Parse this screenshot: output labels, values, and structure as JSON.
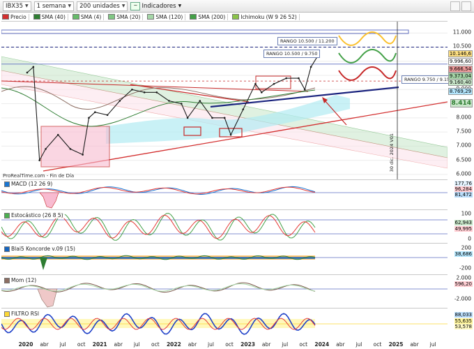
{
  "toolbar": {
    "symbol": "IBX35",
    "period": "1 semana",
    "units": "200 unidades",
    "indicators_label": "Indicadores"
  },
  "legend": [
    {
      "label": "Precio",
      "color": "#d32f2f"
    },
    {
      "label": "SMA (40)",
      "color": "#2e7d32"
    },
    {
      "label": "SMA (4)",
      "color": "#66bb6a"
    },
    {
      "label": "SMA (20)",
      "color": "#81c784"
    },
    {
      "label": "SMA (120)",
      "color": "#a5d6a7"
    },
    {
      "label": "SMA (200)",
      "color": "#43a047"
    },
    {
      "label": "Ichimoku (W 9 26 52)",
      "color": "#8bc34a"
    }
  ],
  "price_axis": [
    "11.000",
    "10.500",
    "10.000",
    "9.500",
    "9.000",
    "8.500",
    "8.000",
    "7.500",
    "7.000",
    "6.500",
    "6.000"
  ],
  "price_tags": [
    {
      "text": "10.146,6",
      "color": "#ffe082"
    },
    {
      "text": "9.996,60",
      "color": "#ffffff"
    },
    {
      "text": "9.666,54",
      "color": "#ef9a9a"
    },
    {
      "text": "9.373,04",
      "color": "#a5d6a7"
    },
    {
      "text": "9.160,40",
      "color": "#c8e6c9"
    },
    {
      "text": "8.769,29",
      "color": "#b3e5fc"
    },
    {
      "text": "8.414",
      "color": "#c8e6c9"
    }
  ],
  "annotations": {
    "rango_top": "RANGO 10.500 / 11.200",
    "rango_mid": "RANGO 10.500 / 9.750",
    "rango_right": "RANGO 9.750 / 9.150",
    "watermark": "ProRealTime.com - Fin de Día",
    "vline_label": "30 dic. 2024 V01"
  },
  "panels": {
    "macd": {
      "title": "MACD (12 26 9)",
      "tags": [
        "177,76",
        "96,284",
        "81,472"
      ]
    },
    "stoch": {
      "title": "Estocástico (26 8 5)",
      "axis": [
        "100",
        "50",
        "0"
      ],
      "tags": [
        "62,943",
        "49,995"
      ]
    },
    "blai5": {
      "title": "Blai5 Koncorde v.09 (15)",
      "axis": [
        "200",
        "-200"
      ],
      "tags": [
        "38,686"
      ]
    },
    "mom": {
      "title": "Mom (12)",
      "axis": [
        "2.000",
        "-2.000"
      ],
      "tags": [
        "596,20"
      ]
    },
    "rsi": {
      "title": "FILTRO RSI",
      "tags": [
        "88,033",
        "55,635",
        "53,578"
      ]
    }
  },
  "time_axis": [
    {
      "label": "2020",
      "year": true
    },
    {
      "label": "abr",
      "year": false
    },
    {
      "label": "jul",
      "year": false
    },
    {
      "label": "oct",
      "year": false
    },
    {
      "label": "2021",
      "year": true
    },
    {
      "label": "abr",
      "year": false
    },
    {
      "label": "jul",
      "year": false
    },
    {
      "label": "oct",
      "year": false
    },
    {
      "label": "2022",
      "year": true
    },
    {
      "label": "abr",
      "year": false
    },
    {
      "label": "jul",
      "year": false
    },
    {
      "label": "oct",
      "year": false
    },
    {
      "label": "2023",
      "year": true
    },
    {
      "label": "abr",
      "year": false
    },
    {
      "label": "jul",
      "year": false
    },
    {
      "label": "oct",
      "year": false
    },
    {
      "label": "2024",
      "year": true
    },
    {
      "label": "abr",
      "year": false
    },
    {
      "label": "jul",
      "year": false
    },
    {
      "label": "oct",
      "year": false
    },
    {
      "label": "2025",
      "year": true
    },
    {
      "label": "abr",
      "year": false
    },
    {
      "label": "jul",
      "year": false
    }
  ],
  "chart_data": {
    "type": "line",
    "series": [
      {
        "name": "Precio",
        "x": [
          "2020-01",
          "2020-02",
          "2020-03",
          "2020-04",
          "2020-06",
          "2020-08",
          "2020-10",
          "2020-11",
          "2020-12",
          "2021-02",
          "2021-04",
          "2021-06",
          "2021-08",
          "2021-10",
          "2021-12",
          "2022-02",
          "2022-03",
          "2022-05",
          "2022-07",
          "2022-09",
          "2022-10",
          "2022-12",
          "2023-02",
          "2023-03",
          "2023-05",
          "2023-07",
          "2023-09",
          "2023-10",
          "2023-11",
          "2023-12"
        ],
        "values": [
          9600,
          9800,
          6500,
          6900,
          7400,
          6900,
          6700,
          8000,
          8200,
          8100,
          8600,
          9000,
          8900,
          8900,
          8600,
          8500,
          8000,
          8600,
          8000,
          8000,
          7400,
          8300,
          9200,
          8900,
          9200,
          9400,
          9400,
          9000,
          9800,
          10150
        ]
      }
    ],
    "ylim": [
      6000,
      11200
    ],
    "grid": true,
    "legend": "top-left"
  },
  "colors": {
    "price_candle": "#1b1b1b",
    "resistance_line": "#d32f2f",
    "trend_blue": "#1a237e",
    "channel_green": "#a5d6a7",
    "channel_red": "#f8bbd0",
    "macd_line": "#1976d2",
    "signal_line": "#e53935"
  }
}
